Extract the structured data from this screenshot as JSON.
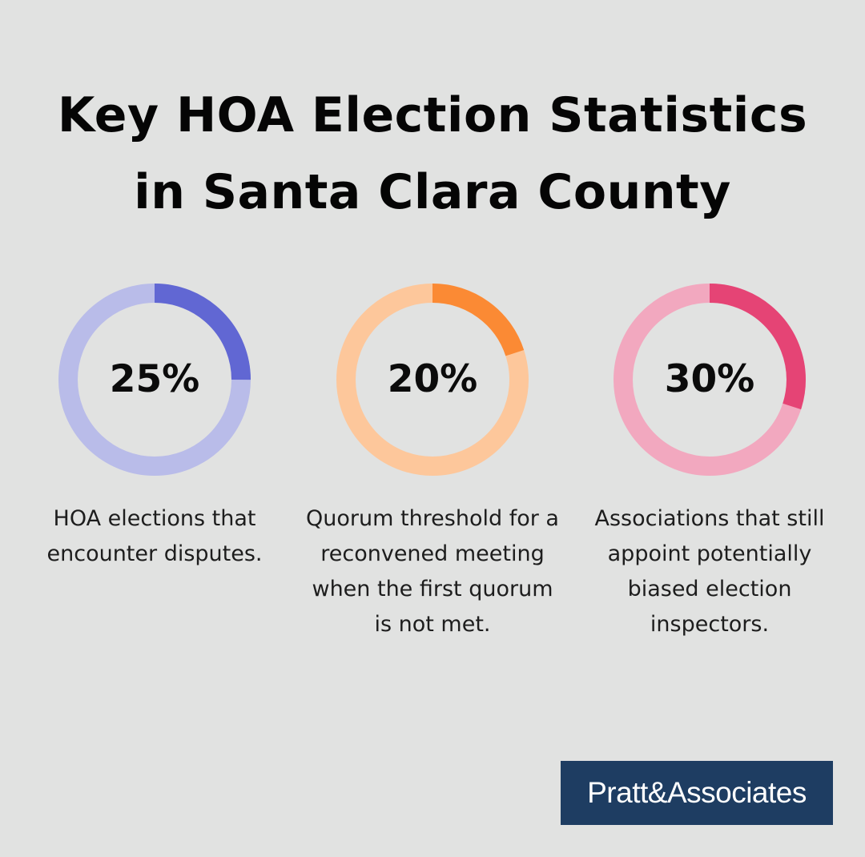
{
  "title": {
    "line1": "Key HOA Election Statistics",
    "line2": "in Santa Clara County"
  },
  "chart_data": [
    {
      "type": "pie",
      "value": 25,
      "label": "25%",
      "caption": "HOA elections that encounter disputes.",
      "colors": {
        "fill": "#6167d3",
        "track": "#b9bce9"
      }
    },
    {
      "type": "pie",
      "value": 20,
      "label": "20%",
      "caption": "Quorum threshold for a reconvened meeting when the first quorum is not met.",
      "colors": {
        "fill": "#fb8a34",
        "track": "#fdc79b"
      }
    },
    {
      "type": "pie",
      "value": 30,
      "label": "30%",
      "caption": "Associations that still appoint potentially biased election inspectors.",
      "colors": {
        "fill": "#e54475",
        "track": "#f2a8bf"
      }
    }
  ],
  "logo": {
    "text": "Pratt&Associates",
    "background": "#1e3d62"
  }
}
